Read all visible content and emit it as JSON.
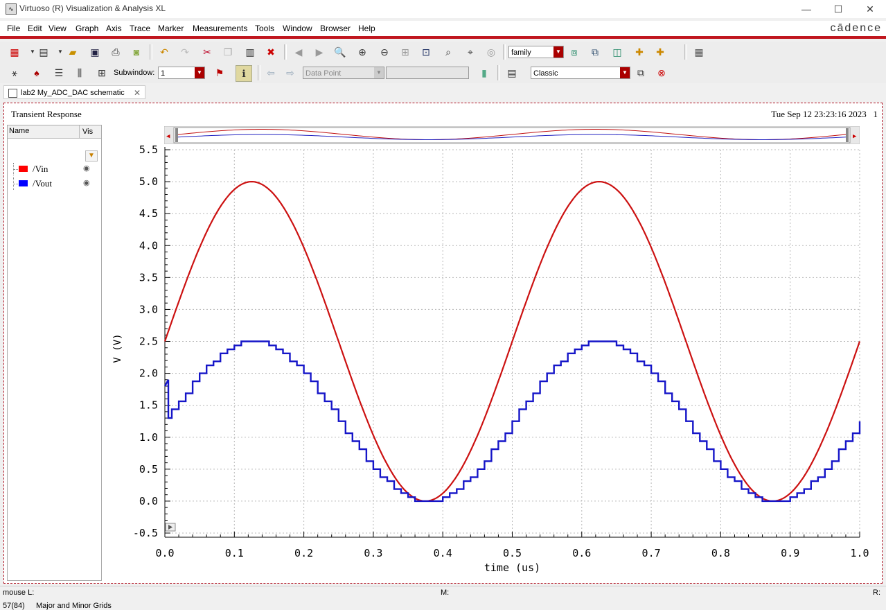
{
  "window": {
    "title": "Virtuoso (R) Visualization & Analysis XL",
    "minimize": "—",
    "maximize": "☐",
    "close": "✕"
  },
  "menu": [
    "File",
    "Edit",
    "View",
    "Graph",
    "Axis",
    "Trace",
    "Marker",
    "Measurements",
    "Tools",
    "Window",
    "Browser",
    "Help"
  ],
  "brand": "cādence",
  "toolbar1": {
    "family_select": "family"
  },
  "toolbar2": {
    "subwindow_label": "Subwindow:",
    "subwindow_value": "1",
    "datapoint_select": "Data Point",
    "style_select": "Classic"
  },
  "tab": {
    "label": "lab2 My_ADC_DAC schematic"
  },
  "graph": {
    "title": "Transient Response",
    "datetime": "Tue Sep 12 23:23:16 2023",
    "subwindow_index": "1"
  },
  "browser": {
    "col_name": "Name",
    "col_vis": "Vis",
    "traces": [
      {
        "name": "/Vin",
        "color": "#ff0000"
      },
      {
        "name": "/Vout",
        "color": "#0000ff"
      }
    ]
  },
  "chart_data": {
    "type": "line",
    "xlabel": "time (us)",
    "ylabel": "V (V)",
    "xlim": [
      0.0,
      1.0
    ],
    "ylim": [
      -0.5,
      5.5
    ],
    "xticks": [
      "0.0",
      "0.1",
      "0.2",
      "0.3",
      "0.4",
      "0.5",
      "0.6",
      "0.7",
      "0.8",
      "0.9",
      "1.0"
    ],
    "yticks": [
      "-0.5",
      "0.0",
      "0.5",
      "1.0",
      "1.5",
      "2.0",
      "2.5",
      "3.0",
      "3.5",
      "4.0",
      "4.5",
      "5.0",
      "5.5"
    ],
    "grid": true,
    "series": [
      {
        "name": "/Vin",
        "color": "#cc1111",
        "function": "2.5 + 2.5*sin(2*pi*2*t)",
        "period_us": 0.5,
        "offset": 2.5,
        "amplitude": 2.5
      },
      {
        "name": "/Vout",
        "color": "#1515c8",
        "step_us": 0.01,
        "initial_spike": 1.9,
        "initial_dip": 1.3,
        "offset": 1.25,
        "amplitude": 1.25
      }
    ]
  },
  "status": {
    "mouse": "mouse L:",
    "middle": "M:",
    "right": "R:",
    "count": "57(84)",
    "message": "Major and Minor Grids"
  }
}
